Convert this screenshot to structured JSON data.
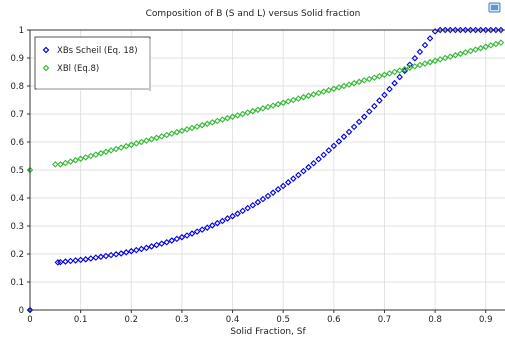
{
  "chart_data": {
    "type": "scatter",
    "title": "Composition of B (S and L) versus Solid fraction",
    "xlabel": "Solid Fraction, Sf",
    "ylabel": "",
    "xlim": [
      0,
      0.94
    ],
    "ylim": [
      0,
      1.0
    ],
    "x_ticks": [
      "0",
      "0.1",
      "0.2",
      "0.3",
      "0.4",
      "0.5",
      "0.6",
      "0.7",
      "0.8",
      "0.9"
    ],
    "y_ticks": [
      "0",
      "0.1",
      "0.2",
      "0.3",
      "0.4",
      "0.5",
      "0.6",
      "0.7",
      "0.8",
      "0.9",
      "1"
    ],
    "grid": true,
    "legend_position": "top-left",
    "marker": "diamond",
    "series": [
      {
        "name": "XBs Scheil (Eq. 18)",
        "color": "#0000e6",
        "points": [
          [
            0,
            0
          ],
          [
            0.055,
            0.17
          ],
          [
            0.06,
            0.171
          ],
          [
            0.07,
            0.173
          ],
          [
            0.08,
            0.175
          ],
          [
            0.09,
            0.177
          ],
          [
            0.1,
            0.179
          ],
          [
            0.11,
            0.181
          ],
          [
            0.12,
            0.184
          ],
          [
            0.13,
            0.187
          ],
          [
            0.14,
            0.19
          ],
          [
            0.15,
            0.193
          ],
          [
            0.16,
            0.196
          ],
          [
            0.17,
            0.199
          ],
          [
            0.18,
            0.202
          ],
          [
            0.19,
            0.206
          ],
          [
            0.2,
            0.21
          ],
          [
            0.21,
            0.214
          ],
          [
            0.22,
            0.218
          ],
          [
            0.23,
            0.222
          ],
          [
            0.24,
            0.227
          ],
          [
            0.25,
            0.232
          ],
          [
            0.26,
            0.237
          ],
          [
            0.27,
            0.242
          ],
          [
            0.28,
            0.248
          ],
          [
            0.29,
            0.254
          ],
          [
            0.3,
            0.26
          ],
          [
            0.31,
            0.266
          ],
          [
            0.32,
            0.273
          ],
          [
            0.33,
            0.28
          ],
          [
            0.34,
            0.287
          ],
          [
            0.35,
            0.294
          ],
          [
            0.36,
            0.302
          ],
          [
            0.37,
            0.31
          ],
          [
            0.38,
            0.318
          ],
          [
            0.39,
            0.327
          ],
          [
            0.4,
            0.335
          ],
          [
            0.41,
            0.344
          ],
          [
            0.42,
            0.354
          ],
          [
            0.43,
            0.364
          ],
          [
            0.44,
            0.374
          ],
          [
            0.45,
            0.385
          ],
          [
            0.46,
            0.396
          ],
          [
            0.47,
            0.407
          ],
          [
            0.48,
            0.419
          ],
          [
            0.49,
            0.431
          ],
          [
            0.5,
            0.443
          ],
          [
            0.51,
            0.456
          ],
          [
            0.52,
            0.469
          ],
          [
            0.53,
            0.482
          ],
          [
            0.54,
            0.496
          ],
          [
            0.55,
            0.51
          ],
          [
            0.56,
            0.524
          ],
          [
            0.57,
            0.539
          ],
          [
            0.58,
            0.554
          ],
          [
            0.59,
            0.57
          ],
          [
            0.6,
            0.586
          ],
          [
            0.61,
            0.602
          ],
          [
            0.62,
            0.619
          ],
          [
            0.63,
            0.636
          ],
          [
            0.64,
            0.654
          ],
          [
            0.65,
            0.672
          ],
          [
            0.66,
            0.69
          ],
          [
            0.67,
            0.709
          ],
          [
            0.68,
            0.728
          ],
          [
            0.69,
            0.748
          ],
          [
            0.7,
            0.768
          ],
          [
            0.71,
            0.789
          ],
          [
            0.72,
            0.81
          ],
          [
            0.73,
            0.832
          ],
          [
            0.74,
            0.854
          ],
          [
            0.75,
            0.876
          ],
          [
            0.76,
            0.899
          ],
          [
            0.77,
            0.922
          ],
          [
            0.78,
            0.946
          ],
          [
            0.79,
            0.97
          ],
          [
            0.8,
            0.995
          ],
          [
            0.81,
            1.0
          ],
          [
            0.82,
            1.0
          ],
          [
            0.83,
            1.0
          ],
          [
            0.84,
            1.0
          ],
          [
            0.85,
            1.0
          ],
          [
            0.86,
            1.0
          ],
          [
            0.87,
            1.0
          ],
          [
            0.88,
            1.0
          ],
          [
            0.89,
            1.0
          ],
          [
            0.9,
            1.0
          ],
          [
            0.91,
            1.0
          ],
          [
            0.92,
            1.0
          ],
          [
            0.93,
            1.0
          ]
        ]
      },
      {
        "name": "XBl (Eq.8)",
        "color": "#33bb33",
        "points": [
          [
            0,
            0.5
          ],
          [
            0.05,
            0.52
          ],
          [
            0.06,
            0.52
          ],
          [
            0.07,
            0.525
          ],
          [
            0.08,
            0.53
          ],
          [
            0.09,
            0.535
          ],
          [
            0.1,
            0.54
          ],
          [
            0.11,
            0.545
          ],
          [
            0.12,
            0.55
          ],
          [
            0.13,
            0.555
          ],
          [
            0.14,
            0.56
          ],
          [
            0.15,
            0.565
          ],
          [
            0.16,
            0.57
          ],
          [
            0.17,
            0.575
          ],
          [
            0.18,
            0.58
          ],
          [
            0.19,
            0.585
          ],
          [
            0.2,
            0.59
          ],
          [
            0.21,
            0.595
          ],
          [
            0.22,
            0.6
          ],
          [
            0.23,
            0.605
          ],
          [
            0.24,
            0.61
          ],
          [
            0.25,
            0.615
          ],
          [
            0.26,
            0.62
          ],
          [
            0.27,
            0.625
          ],
          [
            0.28,
            0.63
          ],
          [
            0.29,
            0.635
          ],
          [
            0.3,
            0.64
          ],
          [
            0.31,
            0.645
          ],
          [
            0.32,
            0.65
          ],
          [
            0.33,
            0.655
          ],
          [
            0.34,
            0.66
          ],
          [
            0.35,
            0.665
          ],
          [
            0.36,
            0.67
          ],
          [
            0.37,
            0.675
          ],
          [
            0.38,
            0.68
          ],
          [
            0.39,
            0.685
          ],
          [
            0.4,
            0.69
          ],
          [
            0.41,
            0.695
          ],
          [
            0.42,
            0.7
          ],
          [
            0.43,
            0.705
          ],
          [
            0.44,
            0.71
          ],
          [
            0.45,
            0.715
          ],
          [
            0.46,
            0.72
          ],
          [
            0.47,
            0.725
          ],
          [
            0.48,
            0.73
          ],
          [
            0.49,
            0.735
          ],
          [
            0.5,
            0.74
          ],
          [
            0.51,
            0.745
          ],
          [
            0.52,
            0.75
          ],
          [
            0.53,
            0.755
          ],
          [
            0.54,
            0.76
          ],
          [
            0.55,
            0.765
          ],
          [
            0.56,
            0.77
          ],
          [
            0.57,
            0.775
          ],
          [
            0.58,
            0.78
          ],
          [
            0.59,
            0.785
          ],
          [
            0.6,
            0.79
          ],
          [
            0.61,
            0.795
          ],
          [
            0.62,
            0.8
          ],
          [
            0.63,
            0.805
          ],
          [
            0.64,
            0.81
          ],
          [
            0.65,
            0.815
          ],
          [
            0.66,
            0.82
          ],
          [
            0.67,
            0.825
          ],
          [
            0.68,
            0.83
          ],
          [
            0.69,
            0.835
          ],
          [
            0.7,
            0.84
          ],
          [
            0.71,
            0.845
          ],
          [
            0.72,
            0.85
          ],
          [
            0.73,
            0.855
          ],
          [
            0.74,
            0.86
          ],
          [
            0.75,
            0.865
          ],
          [
            0.76,
            0.87
          ],
          [
            0.77,
            0.875
          ],
          [
            0.78,
            0.88
          ],
          [
            0.79,
            0.885
          ],
          [
            0.8,
            0.89
          ],
          [
            0.81,
            0.895
          ],
          [
            0.82,
            0.9
          ],
          [
            0.83,
            0.905
          ],
          [
            0.84,
            0.91
          ],
          [
            0.85,
            0.915
          ],
          [
            0.86,
            0.92
          ],
          [
            0.87,
            0.925
          ],
          [
            0.88,
            0.93
          ],
          [
            0.89,
            0.935
          ],
          [
            0.9,
            0.94
          ],
          [
            0.91,
            0.945
          ],
          [
            0.92,
            0.95
          ],
          [
            0.93,
            0.955
          ]
        ]
      }
    ]
  }
}
